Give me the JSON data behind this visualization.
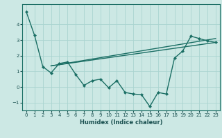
{
  "xlabel": "Humidex (Indice chaleur)",
  "background_color": "#cce8e4",
  "grid_color": "#aad4d0",
  "line_color": "#1a6e64",
  "xlim": [
    -0.5,
    23.5
  ],
  "ylim": [
    -1.5,
    5.3
  ],
  "yticks": [
    -1,
    0,
    1,
    2,
    3,
    4
  ],
  "xticks": [
    0,
    1,
    2,
    3,
    4,
    5,
    6,
    7,
    8,
    9,
    10,
    11,
    12,
    13,
    14,
    15,
    16,
    17,
    18,
    19,
    20,
    21,
    22,
    23
  ],
  "line1_x": [
    0,
    1,
    2,
    3,
    4,
    5,
    6,
    7,
    8,
    9,
    10,
    11,
    12,
    13,
    14,
    15,
    16,
    17,
    18,
    19,
    20,
    21,
    22,
    23
  ],
  "line1_y": [
    4.8,
    3.3,
    1.3,
    0.9,
    1.5,
    1.6,
    0.8,
    0.1,
    0.4,
    0.5,
    -0.05,
    0.4,
    -0.35,
    -0.45,
    -0.5,
    -1.25,
    -0.35,
    -0.45,
    1.85,
    2.3,
    3.25,
    3.1,
    2.95,
    2.85
  ],
  "line2_x": [
    3,
    23
  ],
  "line2_y": [
    1.35,
    2.85
  ],
  "line3_x": [
    3,
    23
  ],
  "line3_y": [
    1.35,
    3.1
  ],
  "tick_labelsize": 5.0,
  "xlabel_fontsize": 6.0,
  "xlabel_color": "#1a5050",
  "tick_color": "#1a5050",
  "spine_color": "#1a6e64",
  "linewidth": 1.0,
  "markersize": 2.2
}
